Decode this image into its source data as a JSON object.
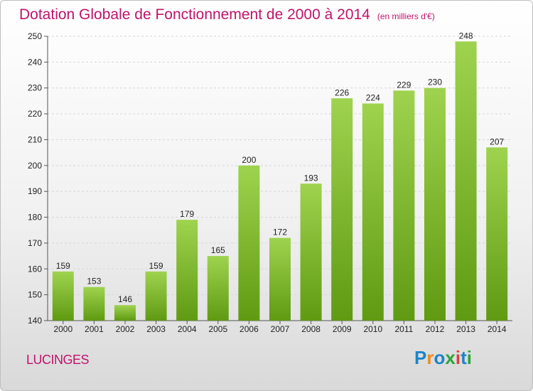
{
  "header": {
    "title": "Dotation Globale de Fonctionnement de 2000 à 2014",
    "subtitle": "(en milliers d'€)"
  },
  "footer": {
    "commune": "LUCINGES",
    "logo_text": "Proxiti"
  },
  "colors": {
    "accent": "#c0136c",
    "bar_light": "#9fd34f",
    "bar_dark": "#5f9a12"
  },
  "chart_data": {
    "type": "bar",
    "title": "Dotation Globale de Fonctionnement de 2000 à 2014",
    "subtitle": "(en milliers d'€)",
    "xlabel": "",
    "ylabel": "",
    "categories": [
      "2000",
      "2001",
      "2002",
      "2003",
      "2004",
      "2005",
      "2006",
      "2007",
      "2008",
      "2009",
      "2010",
      "2011",
      "2012",
      "2013",
      "2014"
    ],
    "values": [
      159,
      153,
      146,
      159,
      179,
      165,
      200,
      172,
      193,
      226,
      224,
      229,
      230,
      248,
      207
    ],
    "ylim": [
      140,
      250
    ],
    "yticks": [
      140,
      150,
      160,
      170,
      180,
      190,
      200,
      210,
      220,
      230,
      240,
      250
    ],
    "grid": true,
    "legend": "none"
  }
}
